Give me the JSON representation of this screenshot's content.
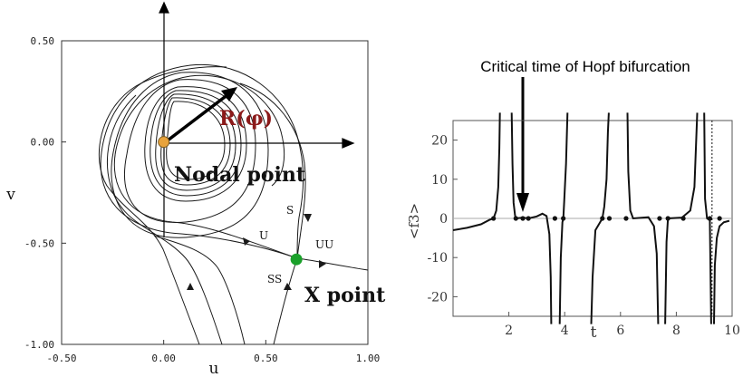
{
  "chart_data": [
    {
      "type": "line",
      "title": "",
      "xlabel": "u",
      "ylabel": "v",
      "xlim": [
        -0.5,
        1.0
      ],
      "ylim": [
        -1.0,
        0.5
      ],
      "x_ticks": [
        "-0.50",
        "0.00",
        "0.50",
        "1.00"
      ],
      "y_ticks": [
        "0.50",
        "0.00",
        "-0.50",
        "-1.00"
      ],
      "grid": false,
      "points": [
        {
          "name": "nodal-point",
          "x": 0.0,
          "y": 0.0,
          "color": "#e8a33c"
        },
        {
          "name": "x-point",
          "x": 0.65,
          "y": -0.58,
          "color": "#1aa02a"
        }
      ],
      "annotations": {
        "radius_label": "R(φ)",
        "radius_label_color": "#8b1a1a",
        "nodal_label": "Nodal point",
        "x_label": "X point",
        "branch_labels": [
          "S",
          "U",
          "UU",
          "SS"
        ]
      }
    },
    {
      "type": "line",
      "title": "Critical time of Hopf bifurcation",
      "xlabel": "t",
      "ylabel": "<f3>",
      "xlim": [
        0,
        10
      ],
      "ylim": [
        -25,
        25
      ],
      "x_ticks": [
        "2",
        "4",
        "6",
        "8",
        "10"
      ],
      "y_ticks": [
        "20",
        "10",
        "0",
        "-10",
        "-20"
      ],
      "grid": false,
      "arrow_target_t": 2.5,
      "marker_t": [
        1.45,
        2.25,
        2.5,
        2.7,
        3.65,
        3.95,
        5.35,
        5.6,
        6.2,
        7.4,
        7.7,
        8.25,
        9.2,
        9.55
      ]
    }
  ]
}
